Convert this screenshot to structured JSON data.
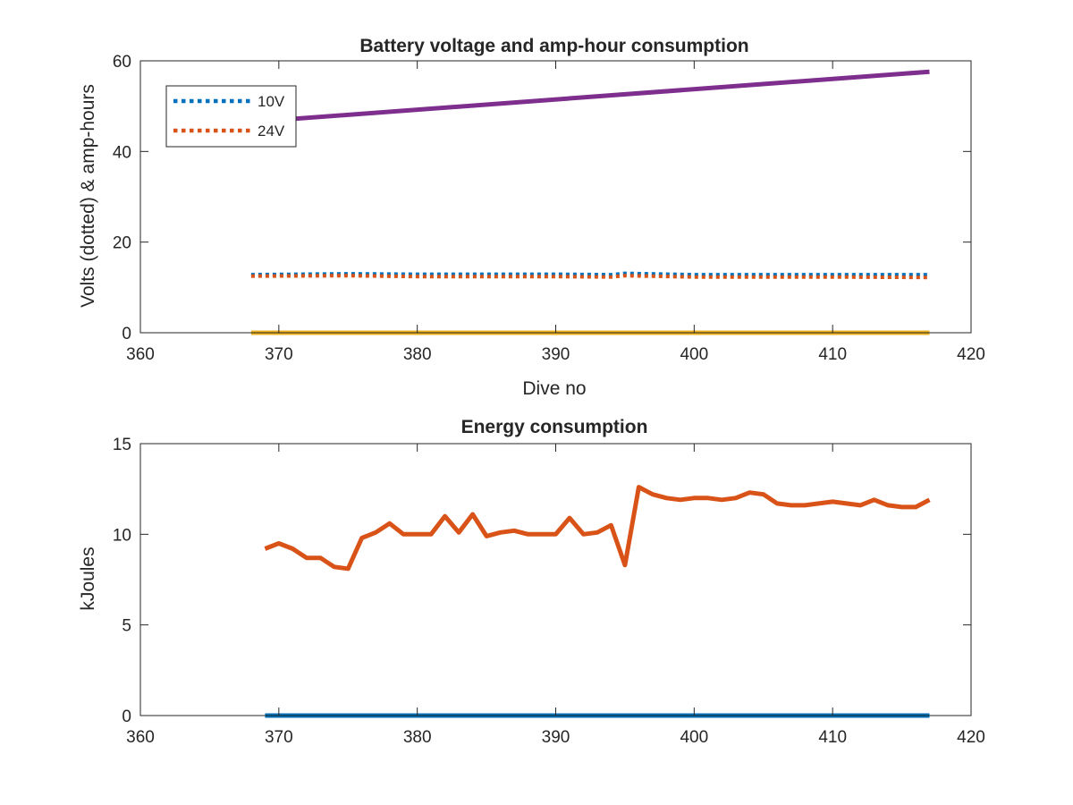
{
  "chart_data": [
    {
      "type": "line",
      "title": "Battery voltage and amp-hour consumption",
      "xlabel": "Dive no",
      "ylabel": "Volts (dotted) & amp-hours",
      "xlim": [
        360,
        420
      ],
      "ylim": [
        0,
        60
      ],
      "xticks": [
        360,
        370,
        380,
        390,
        400,
        410,
        420
      ],
      "yticks": [
        0,
        20,
        40,
        60
      ],
      "grid": false,
      "legend": {
        "placement": "top-left",
        "entries": [
          "10V",
          "24V"
        ]
      },
      "series": [
        {
          "name": "10V",
          "style": "dotted",
          "color": "#0072BD",
          "x": [
            368,
            375,
            380,
            385,
            390,
            394,
            395,
            400,
            405,
            410,
            417
          ],
          "y": [
            12.8,
            13.0,
            12.9,
            12.9,
            12.9,
            12.8,
            13.1,
            12.8,
            12.8,
            12.8,
            12.8
          ]
        },
        {
          "name": "24V",
          "style": "dotted",
          "color": "#D95319",
          "x": [
            368,
            375,
            380,
            385,
            390,
            394,
            395,
            400,
            405,
            410,
            417
          ],
          "y": [
            12.5,
            12.6,
            12.4,
            12.4,
            12.4,
            12.3,
            12.6,
            12.3,
            12.3,
            12.3,
            12.2
          ]
        },
        {
          "style": "solid",
          "color": "#EDB120",
          "x": [
            368,
            417
          ],
          "y": [
            0,
            0
          ]
        },
        {
          "style": "solid",
          "color": "#7E2F8E",
          "x": [
            368,
            417
          ],
          "y": [
            46.5,
            57.6
          ]
        }
      ]
    },
    {
      "type": "line",
      "title": "Energy consumption",
      "xlabel": "",
      "ylabel": "kJoules",
      "xlim": [
        360,
        420
      ],
      "ylim": [
        0,
        15
      ],
      "xticks": [
        360,
        370,
        380,
        390,
        400,
        410,
        420
      ],
      "yticks": [
        0,
        5,
        10,
        15
      ],
      "grid": false,
      "series": [
        {
          "style": "solid",
          "color": "#0072BD",
          "x": [
            369,
            417
          ],
          "y": [
            0,
            0
          ]
        },
        {
          "style": "solid",
          "color": "#D95319",
          "x": [
            369,
            370,
            371,
            372,
            373,
            374,
            375,
            376,
            377,
            378,
            379,
            380,
            381,
            382,
            383,
            384,
            385,
            386,
            387,
            388,
            389,
            390,
            391,
            392,
            393,
            394,
            395,
            396,
            397,
            398,
            399,
            400,
            401,
            402,
            403,
            404,
            405,
            406,
            407,
            408,
            409,
            410,
            411,
            412,
            413,
            414,
            415,
            416,
            417
          ],
          "y": [
            9.2,
            9.5,
            9.2,
            8.7,
            8.7,
            8.2,
            8.1,
            9.8,
            10.1,
            10.6,
            10.0,
            10.0,
            10.0,
            11.0,
            10.1,
            11.1,
            9.9,
            10.1,
            10.2,
            10.0,
            10.0,
            10.0,
            10.9,
            10.0,
            10.1,
            10.5,
            8.3,
            12.6,
            12.2,
            12.0,
            11.9,
            12.0,
            12.0,
            11.9,
            12.0,
            12.3,
            12.2,
            11.7,
            11.6,
            11.6,
            11.7,
            11.8,
            11.7,
            11.6,
            11.9,
            11.6,
            11.5,
            11.5,
            11.9
          ]
        }
      ]
    }
  ]
}
